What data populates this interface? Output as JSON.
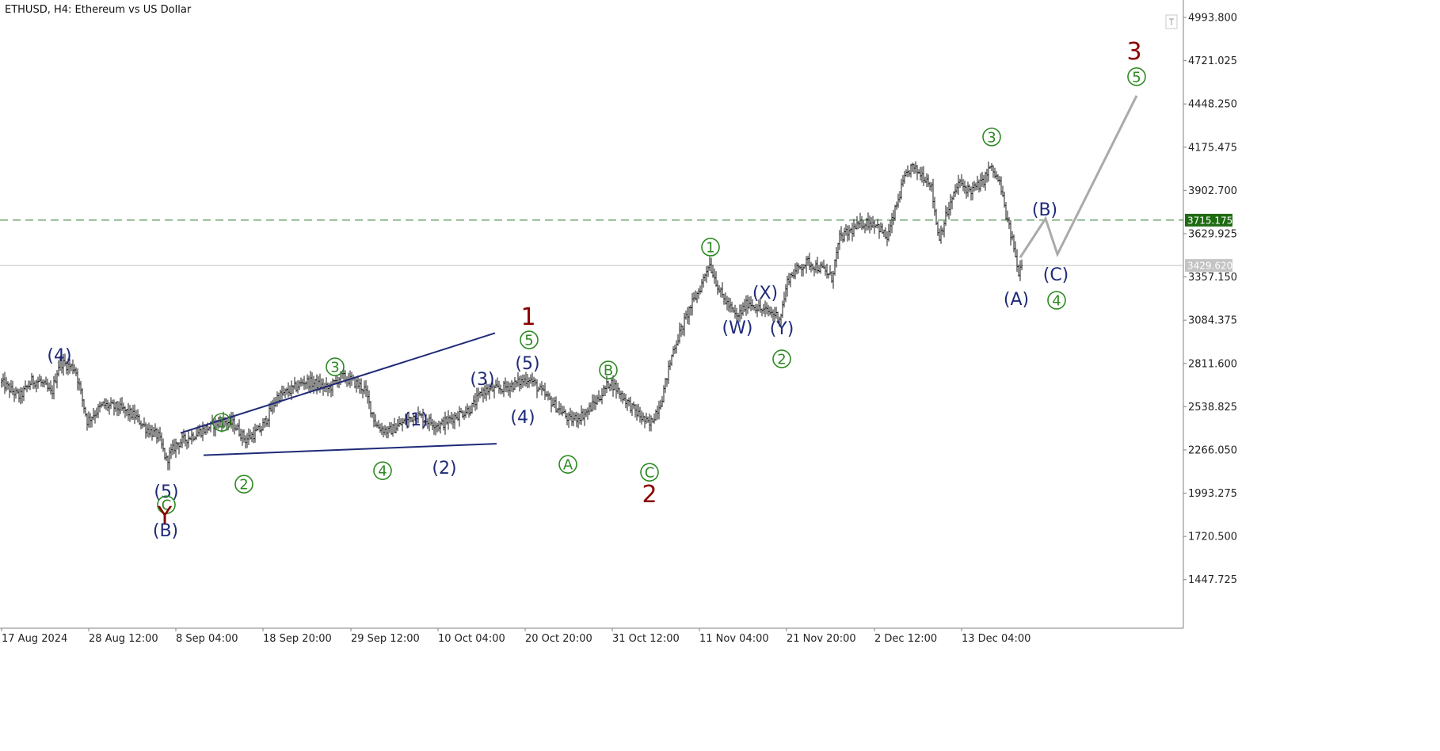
{
  "chart_data": {
    "type": "candlestick",
    "title": "ETHUSD, H4:  Ethereum vs US Dollar",
    "ylim": [
      1180,
      5100
    ],
    "y_ticks": [
      "4993.800",
      "4721.025",
      "4448.250",
      "4175.475",
      "3902.700",
      "3629.925",
      "3357.150",
      "3084.375",
      "2811.600",
      "2538.825",
      "2266.050",
      "1993.275",
      "1720.500",
      "1447.725"
    ],
    "y_tick_values": [
      4993.8,
      4721.025,
      4448.25,
      4175.475,
      3902.7,
      3629.925,
      3357.15,
      3084.375,
      2811.6,
      2538.825,
      2266.05,
      1993.275,
      1720.5,
      1447.725
    ],
    "x_ticks": [
      "17 Aug 2024",
      "28 Aug 12:00",
      "8 Sep 04:00",
      "18 Sep 20:00",
      "29 Sep 12:00",
      "10 Oct 04:00",
      "20 Oct 20:00",
      "31 Oct 12:00",
      "11 Nov 04:00",
      "21 Nov 20:00",
      "2 Dec 12:00",
      "13 Dec 04:00"
    ],
    "bars_start": "17 Aug 2024",
    "bar_interval": "4 hours",
    "projection_bars": 48,
    "price_path": [
      [
        0,
        2700
      ],
      [
        12,
        2650
      ],
      [
        25,
        2600
      ],
      [
        40,
        2700
      ],
      [
        50,
        2700
      ],
      [
        65,
        2620
      ],
      [
        75,
        2820
      ],
      [
        95,
        2780
      ],
      [
        110,
        2450
      ],
      [
        130,
        2550
      ],
      [
        150,
        2530
      ],
      [
        170,
        2480
      ],
      [
        185,
        2400
      ],
      [
        200,
        2350
      ],
      [
        210,
        2200
      ],
      [
        222,
        2300
      ],
      [
        240,
        2350
      ],
      [
        260,
        2400
      ],
      [
        280,
        2450
      ],
      [
        295,
        2430
      ],
      [
        310,
        2330
      ],
      [
        330,
        2400
      ],
      [
        350,
        2600
      ],
      [
        370,
        2650
      ],
      [
        385,
        2700
      ],
      [
        400,
        2680
      ],
      [
        415,
        2650
      ],
      [
        430,
        2730
      ],
      [
        445,
        2700
      ],
      [
        460,
        2650
      ],
      [
        475,
        2420
      ],
      [
        490,
        2380
      ],
      [
        510,
        2440
      ],
      [
        525,
        2490
      ],
      [
        540,
        2450
      ],
      [
        555,
        2420
      ],
      [
        575,
        2480
      ],
      [
        595,
        2530
      ],
      [
        610,
        2640
      ],
      [
        630,
        2650
      ],
      [
        650,
        2680
      ],
      [
        668,
        2720
      ],
      [
        680,
        2650
      ],
      [
        700,
        2550
      ],
      [
        720,
        2450
      ],
      [
        740,
        2500
      ],
      [
        760,
        2620
      ],
      [
        770,
        2700
      ],
      [
        780,
        2640
      ],
      [
        800,
        2520
      ],
      [
        820,
        2420
      ],
      [
        835,
        2580
      ],
      [
        850,
        2900
      ],
      [
        870,
        3150
      ],
      [
        885,
        3300
      ],
      [
        895,
        3450
      ],
      [
        910,
        3250
      ],
      [
        930,
        3100
      ],
      [
        945,
        3200
      ],
      [
        960,
        3150
      ],
      [
        975,
        3130
      ],
      [
        985,
        3100
      ],
      [
        995,
        3350
      ],
      [
        1010,
        3420
      ],
      [
        1020,
        3450
      ],
      [
        1040,
        3400
      ],
      [
        1050,
        3350
      ],
      [
        1060,
        3600
      ],
      [
        1075,
        3650
      ],
      [
        1090,
        3700
      ],
      [
        1105,
        3700
      ],
      [
        1120,
        3600
      ],
      [
        1140,
        3950
      ],
      [
        1150,
        4050
      ],
      [
        1165,
        4000
      ],
      [
        1175,
        3950
      ],
      [
        1185,
        3600
      ],
      [
        1195,
        3750
      ],
      [
        1210,
        3950
      ],
      [
        1225,
        3900
      ],
      [
        1240,
        3950
      ],
      [
        1250,
        4050
      ],
      [
        1262,
        3950
      ],
      [
        1272,
        3700
      ],
      [
        1280,
        3550
      ],
      [
        1285,
        3380
      ],
      [
        1290,
        3450
      ]
    ],
    "horizontal_lines": [
      {
        "price": 3715.175,
        "label": "3715.175",
        "style": "dashed",
        "color": "#2d7a2d"
      },
      {
        "price": 3429.62,
        "label": "3429.620",
        "style": "solid",
        "color": "#c0c0c0"
      }
    ],
    "projection": [
      [
        1288,
        3480
      ],
      [
        1320,
        3725
      ],
      [
        1335,
        3500
      ],
      [
        1435,
        4500
      ]
    ],
    "channel_lines": [
      {
        "from": [
          228,
          2373
        ],
        "to": [
          625,
          3003
        ]
      },
      {
        "from": [
          257,
          2233
        ],
        "to": [
          627,
          2305
        ]
      }
    ],
    "wave_labels": [
      {
        "text": "(4)",
        "x": 75,
        "price": 2860,
        "style": "navy"
      },
      {
        "text": "(5)",
        "x": 210,
        "price": 2000,
        "style": "navy"
      },
      {
        "text": "C",
        "x": 210,
        "price": 1920,
        "style": "green-circle"
      },
      {
        "text": "Y",
        "x": 208,
        "price": 1850,
        "style": "red"
      },
      {
        "text": "(B)",
        "x": 209,
        "price": 1755,
        "style": "navy"
      },
      {
        "text": "1",
        "x": 280,
        "price": 2440,
        "style": "green-circle"
      },
      {
        "text": "2",
        "x": 308,
        "price": 2050,
        "style": "green-circle"
      },
      {
        "text": "3",
        "x": 423,
        "price": 2790,
        "style": "green-circle"
      },
      {
        "text": "4",
        "x": 483,
        "price": 2135,
        "style": "green-circle"
      },
      {
        "text": "(1)",
        "x": 525,
        "price": 2455,
        "style": "navy"
      },
      {
        "text": "(2)",
        "x": 561,
        "price": 2150,
        "style": "navy"
      },
      {
        "text": "(3)",
        "x": 609,
        "price": 2710,
        "style": "navy"
      },
      {
        "text": "(4)",
        "x": 660,
        "price": 2470,
        "style": "navy"
      },
      {
        "text": "(5)",
        "x": 666,
        "price": 2810,
        "style": "navy"
      },
      {
        "text": "5",
        "x": 668,
        "price": 2960,
        "style": "green-circle"
      },
      {
        "text": "1",
        "x": 667,
        "price": 3105,
        "style": "red"
      },
      {
        "text": "A",
        "x": 717,
        "price": 2175,
        "style": "green-circle"
      },
      {
        "text": "B",
        "x": 768,
        "price": 2770,
        "style": "green-circle"
      },
      {
        "text": "C",
        "x": 820,
        "price": 2125,
        "style": "green-circle"
      },
      {
        "text": "2",
        "x": 820,
        "price": 1985,
        "style": "red"
      },
      {
        "text": "1",
        "x": 897,
        "price": 3545,
        "style": "green-circle"
      },
      {
        "text": "(W)",
        "x": 931,
        "price": 3035,
        "style": "navy"
      },
      {
        "text": "(X)",
        "x": 966,
        "price": 3255,
        "style": "navy"
      },
      {
        "text": "(Y)",
        "x": 987,
        "price": 3030,
        "style": "navy"
      },
      {
        "text": "2",
        "x": 987,
        "price": 2840,
        "style": "green-circle"
      },
      {
        "text": "3",
        "x": 1252,
        "price": 4240,
        "style": "green-circle"
      },
      {
        "text": "(B)",
        "x": 1319,
        "price": 3780,
        "style": "navy"
      },
      {
        "text": "(A)",
        "x": 1283,
        "price": 3215,
        "style": "navy"
      },
      {
        "text": "(C)",
        "x": 1333,
        "price": 3370,
        "style": "navy"
      },
      {
        "text": "4",
        "x": 1334,
        "price": 3210,
        "style": "green-circle"
      },
      {
        "text": "3",
        "x": 1432,
        "price": 4780,
        "style": "red"
      },
      {
        "text": "5",
        "x": 1435,
        "price": 4620,
        "style": "green-circle"
      }
    ]
  },
  "colors": {
    "candle": "#1a1a1a",
    "navy": "#1f2a78",
    "green": "#2d8a22",
    "red": "#8b0000",
    "projection": "#aaaaaa",
    "dashed_line": "#2d7a2d",
    "current_price_line": "#c0c0c0",
    "frame": "#808080"
  }
}
